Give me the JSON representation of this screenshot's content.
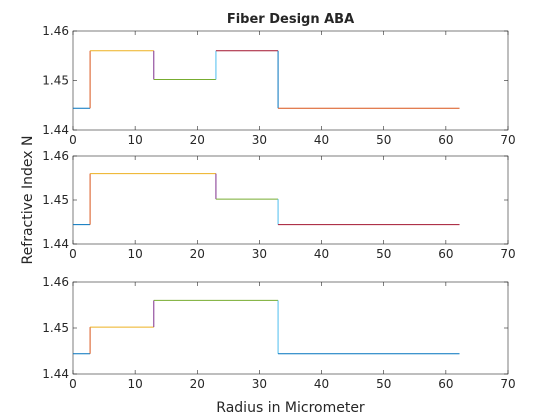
{
  "chart_data": [
    {
      "type": "line",
      "title": "Fiber Design ABA",
      "xlabel": "",
      "ylabel": "",
      "xlim": [
        0,
        70
      ],
      "ylim": [
        1.44,
        1.46
      ],
      "xticks": [
        "0",
        "10",
        "20",
        "30",
        "40",
        "50",
        "60",
        "70"
      ],
      "yticks": [
        "1.44",
        "1.45",
        "1.46"
      ],
      "grid": false,
      "series": [
        {
          "color": "#0072BD",
          "x": [
            0,
            2.75
          ],
          "y": [
            1.4444,
            1.4444
          ]
        },
        {
          "color": "#D95319",
          "x": [
            2.75,
            2.75
          ],
          "y": [
            1.4444,
            1.456
          ]
        },
        {
          "color": "#EDB120",
          "x": [
            2.75,
            13
          ],
          "y": [
            1.456,
            1.456
          ]
        },
        {
          "color": "#7E2F8E",
          "x": [
            13,
            13
          ],
          "y": [
            1.456,
            1.4502
          ]
        },
        {
          "color": "#77AC30",
          "x": [
            13,
            23
          ],
          "y": [
            1.4502,
            1.4502
          ]
        },
        {
          "color": "#4DBEEE",
          "x": [
            23,
            23
          ],
          "y": [
            1.4502,
            1.456
          ]
        },
        {
          "color": "#A2142F",
          "x": [
            23,
            33
          ],
          "y": [
            1.456,
            1.456
          ]
        },
        {
          "color": "#0072BD",
          "x": [
            33,
            33
          ],
          "y": [
            1.456,
            1.4444
          ]
        },
        {
          "color": "#D95319",
          "x": [
            33,
            62.2
          ],
          "y": [
            1.4444,
            1.4444
          ]
        }
      ]
    },
    {
      "type": "line",
      "title": "",
      "xlabel": "",
      "ylabel": "Refractive Index N",
      "xlim": [
        0,
        70
      ],
      "ylim": [
        1.44,
        1.46
      ],
      "xticks": [
        "0",
        "10",
        "20",
        "30",
        "40",
        "50",
        "60",
        "70"
      ],
      "yticks": [
        "1.44",
        "1.45",
        "1.46"
      ],
      "grid": false,
      "series": [
        {
          "color": "#0072BD",
          "x": [
            0,
            2.75
          ],
          "y": [
            1.4444,
            1.4444
          ]
        },
        {
          "color": "#D95319",
          "x": [
            2.75,
            2.75
          ],
          "y": [
            1.4444,
            1.456
          ]
        },
        {
          "color": "#EDB120",
          "x": [
            2.75,
            23
          ],
          "y": [
            1.456,
            1.456
          ]
        },
        {
          "color": "#7E2F8E",
          "x": [
            23,
            23
          ],
          "y": [
            1.456,
            1.4502
          ]
        },
        {
          "color": "#77AC30",
          "x": [
            23,
            33
          ],
          "y": [
            1.4502,
            1.4502
          ]
        },
        {
          "color": "#4DBEEE",
          "x": [
            33,
            33
          ],
          "y": [
            1.4502,
            1.4444
          ]
        },
        {
          "color": "#A2142F",
          "x": [
            33,
            62.2
          ],
          "y": [
            1.4444,
            1.4444
          ]
        }
      ]
    },
    {
      "type": "line",
      "title": "",
      "xlabel": "Radius in Micrometer",
      "ylabel": "",
      "xlim": [
        0,
        70
      ],
      "ylim": [
        1.44,
        1.46
      ],
      "xticks": [
        "0",
        "10",
        "20",
        "30",
        "40",
        "50",
        "60",
        "70"
      ],
      "yticks": [
        "1.44",
        "1.45",
        "1.46"
      ],
      "grid": false,
      "series": [
        {
          "color": "#0072BD",
          "x": [
            0,
            2.75
          ],
          "y": [
            1.4444,
            1.4444
          ]
        },
        {
          "color": "#D95319",
          "x": [
            2.75,
            2.75
          ],
          "y": [
            1.4444,
            1.4502
          ]
        },
        {
          "color": "#EDB120",
          "x": [
            2.75,
            13
          ],
          "y": [
            1.4502,
            1.4502
          ]
        },
        {
          "color": "#7E2F8E",
          "x": [
            13,
            13
          ],
          "y": [
            1.4502,
            1.456
          ]
        },
        {
          "color": "#77AC30",
          "x": [
            13,
            33
          ],
          "y": [
            1.456,
            1.456
          ]
        },
        {
          "color": "#4DBEEE",
          "x": [
            33,
            33
          ],
          "y": [
            1.456,
            1.4444
          ]
        },
        {
          "color": "#0072BD",
          "x": [
            33,
            62.2
          ],
          "y": [
            1.4444,
            1.4444
          ]
        }
      ]
    }
  ]
}
